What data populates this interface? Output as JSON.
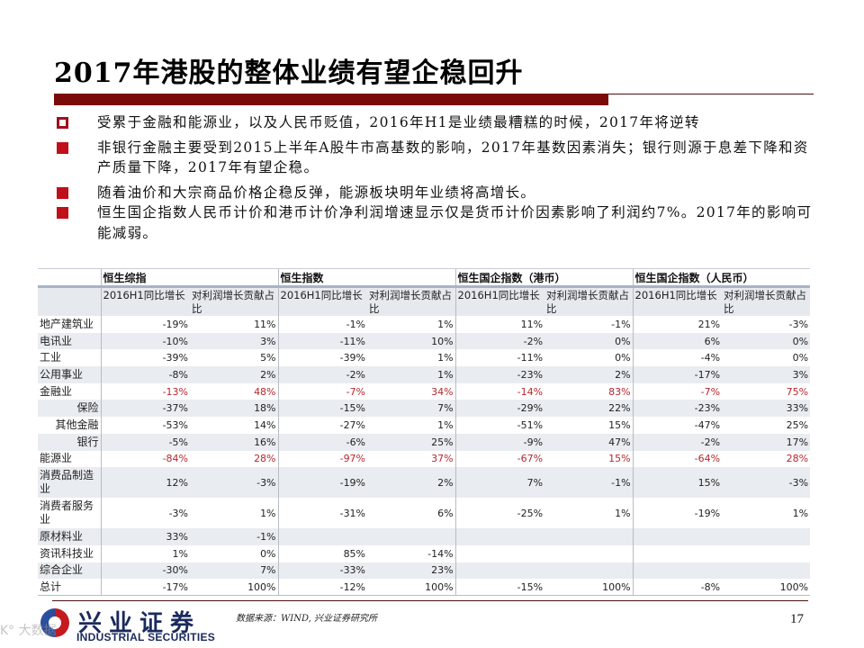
{
  "slide": {
    "title": "2017年港股的整体业绩有望企稳回升",
    "page_number": "17",
    "accent_color": "#7b0a0a",
    "bullet_color": "#c0101a"
  },
  "bullets": [
    {
      "icon": "hollow-square-bullet-icon",
      "text": "受累于金融和能源业，以及人民币贬值，2016年H1是业绩最糟糕的时候，2017年将逆转"
    },
    {
      "icon": "filled-square-bullet-icon",
      "text": "非银行金融主要受到2015上半年A股牛市高基数的影响，2017年基数因素消失；银行则源于息差下降和资产质量下降，2017年有望企稳。"
    },
    {
      "icon": "filled-square-bullet-icon",
      "text": "随着油价和大宗商品价格企稳反弹，能源板块明年业绩将高增长。"
    },
    {
      "icon": "filled-square-bullet-icon",
      "text": "恒生国企指数人民币计价和港币计价净利润增速显示仅是货币计价因素影响了利润约7%。2017年的影响可能减弱。"
    }
  ],
  "table": {
    "groups": [
      "恒生综指",
      "恒生指数",
      "恒生国企指数（港币）",
      "恒生国企指数（人民币）"
    ],
    "sub_headers": [
      "2016H1同比增长",
      "对利润增长贡献占比"
    ],
    "highlight_color": "#b5272d",
    "rows": [
      {
        "label": "地产建筑业",
        "values": [
          "-19%",
          "11%",
          "-1%",
          "1%",
          "11%",
          "-1%",
          "21%",
          "-3%"
        ]
      },
      {
        "label": "电讯业",
        "values": [
          "-10%",
          "3%",
          "-11%",
          "10%",
          "-2%",
          "0%",
          "6%",
          "0%"
        ]
      },
      {
        "label": "工业",
        "values": [
          "-39%",
          "5%",
          "-39%",
          "1%",
          "-11%",
          "0%",
          "-4%",
          "0%"
        ]
      },
      {
        "label": "公用事业",
        "values": [
          "-8%",
          "2%",
          "-2%",
          "1%",
          "-23%",
          "2%",
          "-17%",
          "3%"
        ]
      },
      {
        "label": "金融业",
        "values": [
          "-13%",
          "48%",
          "-7%",
          "34%",
          "-14%",
          "83%",
          "-7%",
          "75%"
        ]
      },
      {
        "label": "保险",
        "values": [
          "-37%",
          "18%",
          "-15%",
          "7%",
          "-29%",
          "22%",
          "-23%",
          "33%"
        ]
      },
      {
        "label": "其他金融",
        "values": [
          "-53%",
          "14%",
          "-27%",
          "1%",
          "-51%",
          "15%",
          "-47%",
          "25%"
        ]
      },
      {
        "label": "银行",
        "values": [
          "-5%",
          "16%",
          "-6%",
          "25%",
          "-9%",
          "47%",
          "-2%",
          "17%"
        ]
      },
      {
        "label": "能源业",
        "values": [
          "-84%",
          "28%",
          "-97%",
          "37%",
          "-67%",
          "15%",
          "-64%",
          "28%"
        ]
      },
      {
        "label": "消费品制造业",
        "values": [
          "12%",
          "-3%",
          "-19%",
          "2%",
          "7%",
          "-1%",
          "15%",
          "-3%"
        ]
      },
      {
        "label": "消费者服务业",
        "values": [
          "-3%",
          "1%",
          "-31%",
          "6%",
          "-25%",
          "1%",
          "-19%",
          "1%"
        ]
      },
      {
        "label": "原材料业",
        "values": [
          "33%",
          "-1%",
          "",
          "",
          "",
          "",
          "",
          ""
        ]
      },
      {
        "label": "资讯科技业",
        "values": [
          "1%",
          "0%",
          "85%",
          "-14%",
          "",
          "",
          "",
          ""
        ]
      },
      {
        "label": "综合企业",
        "values": [
          "-30%",
          "7%",
          "-33%",
          "23%",
          "",
          "",
          "",
          ""
        ]
      },
      {
        "label": "总计",
        "values": [
          "-17%",
          "100%",
          "-12%",
          "100%",
          "-15%",
          "100%",
          "-8%",
          "100%"
        ]
      }
    ]
  },
  "footer": {
    "source": "数据来源：WIND, 兴业证券研究所",
    "logo_cn": "兴业证券",
    "logo_en": "INDUSTRIAL SECURITIES",
    "watermark": "K° 大数据"
  }
}
